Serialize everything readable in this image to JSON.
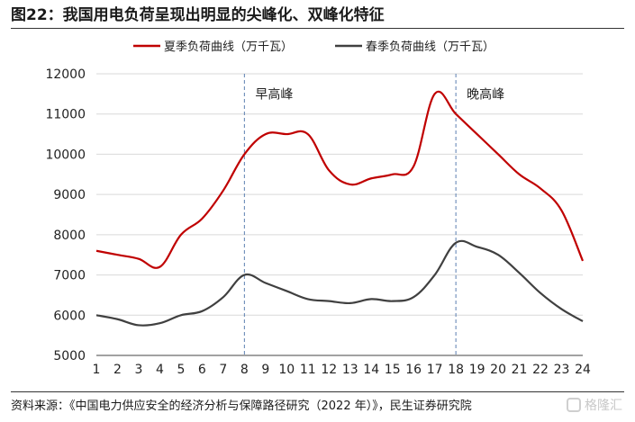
{
  "header": {
    "title": "图22：我国用电负荷呈现出明显的尖峰化、双峰化特征"
  },
  "footer": {
    "source": "资料来源：《中国电力供应安全的经济分析与保障路径研究（2022 年）》，民生证券研究院"
  },
  "watermark": {
    "text": "格隆汇"
  },
  "colors": {
    "summer": "#c00000",
    "spring": "#404040",
    "grid": "#d9d9d9",
    "marker": "#5b7fb0"
  },
  "chart_data": {
    "type": "line",
    "title": "",
    "xlabel": "",
    "ylabel": "",
    "x": [
      1,
      2,
      3,
      4,
      5,
      6,
      7,
      8,
      9,
      10,
      11,
      12,
      13,
      14,
      15,
      16,
      17,
      18,
      19,
      20,
      21,
      22,
      23,
      24
    ],
    "ylim": [
      5000,
      12000
    ],
    "yticks": [
      5000,
      6000,
      7000,
      8000,
      9000,
      10000,
      11000,
      12000
    ],
    "grid": true,
    "legend_position": "top",
    "series": [
      {
        "name": "夏季负荷曲线（万千瓦）",
        "values": [
          7600,
          7500,
          7400,
          7200,
          8000,
          8400,
          9100,
          10000,
          10500,
          10500,
          10500,
          9600,
          9250,
          9400,
          9500,
          9700,
          11500,
          11000,
          10500,
          10000,
          9500,
          9150,
          8600,
          7350
        ]
      },
      {
        "name": "春季负荷曲线（万千瓦）",
        "values": [
          6000,
          5900,
          5750,
          5800,
          6000,
          6100,
          6450,
          7000,
          6800,
          6600,
          6400,
          6350,
          6300,
          6400,
          6350,
          6450,
          7000,
          7800,
          7700,
          7500,
          7050,
          6550,
          6150,
          5850
        ]
      }
    ],
    "annotations": [
      {
        "x": 8,
        "label": "早高峰"
      },
      {
        "x": 18,
        "label": "晚高峰"
      }
    ]
  }
}
